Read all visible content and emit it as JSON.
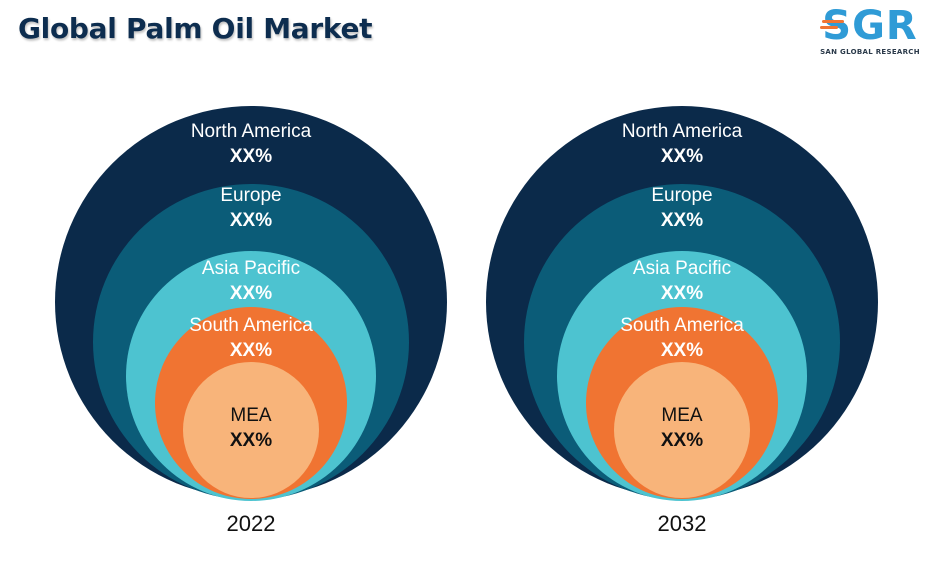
{
  "header": {
    "title": "Global Palm Oil Market",
    "logo_text": "SGR",
    "logo_subtext": "SAN GLOBAL RESEARCH"
  },
  "colors": {
    "title": "#0d2d4f",
    "north_america": "#0b2a4a",
    "europe": "#0b5c78",
    "asia_pacific": "#4dc3d0",
    "south_america": "#f07432",
    "mea": "#f8b47a",
    "logo_blue": "#2f9bd6",
    "logo_orange": "#f07432"
  },
  "chart_data": [
    {
      "type": "nested-circles",
      "year": "2022",
      "rings": [
        {
          "name": "North America",
          "value": "XX%"
        },
        {
          "name": "Europe",
          "value": "XX%"
        },
        {
          "name": "Asia Pacific",
          "value": "XX%"
        },
        {
          "name": "South America",
          "value": "XX%"
        },
        {
          "name": "MEA",
          "value": "XX%"
        }
      ]
    },
    {
      "type": "nested-circles",
      "year": "2032",
      "rings": [
        {
          "name": "North America",
          "value": "XX%"
        },
        {
          "name": "Europe",
          "value": "XX%"
        },
        {
          "name": "Asia Pacific",
          "value": "XX%"
        },
        {
          "name": "South America",
          "value": "XX%"
        },
        {
          "name": "MEA",
          "value": "XX%"
        }
      ]
    }
  ]
}
